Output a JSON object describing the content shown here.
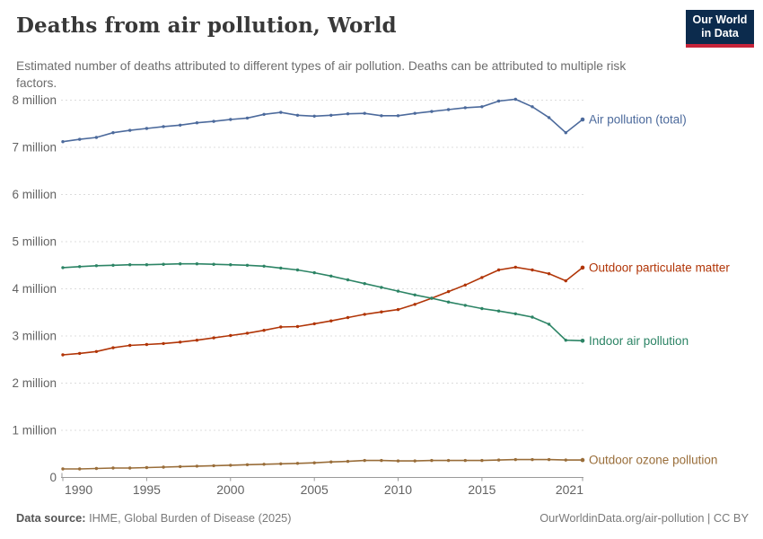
{
  "header": {
    "title": "Deaths from air pollution, World",
    "subtitle": "Estimated number of deaths attributed to different types of air pollution. Deaths can be attributed to multiple risk factors.",
    "logo": {
      "line1": "Our World",
      "line2": "in Data"
    }
  },
  "footer": {
    "datasource_label": "Data source:",
    "datasource_value": " IHME, Global Burden of Disease (2025)",
    "attribution": "OurWorldinData.org/air-pollution | CC BY"
  },
  "chart_data": {
    "type": "line",
    "title": "Deaths from air pollution, World",
    "xlabel": "",
    "ylabel": "",
    "ylim": [
      0,
      8.4
    ],
    "grid": true,
    "legend_position": "right-end-labels",
    "x": [
      1990,
      1991,
      1992,
      1993,
      1994,
      1995,
      1996,
      1997,
      1998,
      1999,
      2000,
      2001,
      2002,
      2003,
      2004,
      2005,
      2006,
      2007,
      2008,
      2009,
      2010,
      2011,
      2012,
      2013,
      2014,
      2015,
      2016,
      2017,
      2018,
      2019,
      2020,
      2021
    ],
    "series": [
      {
        "name": "Air pollution (total)",
        "color": "#4C6A9C",
        "values": [
          7.12,
          7.17,
          7.21,
          7.31,
          7.36,
          7.4,
          7.44,
          7.47,
          7.52,
          7.55,
          7.59,
          7.62,
          7.7,
          7.74,
          7.68,
          7.66,
          7.68,
          7.71,
          7.72,
          7.67,
          7.67,
          7.72,
          7.76,
          7.8,
          7.84,
          7.86,
          7.98,
          8.02,
          7.86,
          7.63,
          7.31,
          7.59
        ]
      },
      {
        "name": "Outdoor particulate matter",
        "color": "#B13507",
        "values": [
          2.6,
          2.63,
          2.67,
          2.75,
          2.8,
          2.82,
          2.84,
          2.87,
          2.91,
          2.96,
          3.01,
          3.06,
          3.12,
          3.19,
          3.2,
          3.26,
          3.32,
          3.39,
          3.46,
          3.51,
          3.56,
          3.67,
          3.8,
          3.94,
          4.08,
          4.24,
          4.4,
          4.46,
          4.4,
          4.32,
          4.17,
          4.45
        ]
      },
      {
        "name": "Indoor air pollution",
        "color": "#2C8465",
        "values": [
          4.45,
          4.47,
          4.49,
          4.5,
          4.51,
          4.51,
          4.52,
          4.53,
          4.53,
          4.52,
          4.51,
          4.5,
          4.48,
          4.44,
          4.4,
          4.34,
          4.27,
          4.19,
          4.11,
          4.03,
          3.95,
          3.87,
          3.8,
          3.72,
          3.65,
          3.58,
          3.53,
          3.47,
          3.4,
          3.25,
          2.91,
          2.9
        ]
      },
      {
        "name": "Outdoor ozone pollution",
        "color": "#996D39",
        "values": [
          0.18,
          0.18,
          0.19,
          0.2,
          0.2,
          0.21,
          0.22,
          0.23,
          0.24,
          0.25,
          0.26,
          0.27,
          0.28,
          0.29,
          0.3,
          0.31,
          0.33,
          0.34,
          0.36,
          0.36,
          0.35,
          0.35,
          0.36,
          0.36,
          0.36,
          0.36,
          0.37,
          0.38,
          0.38,
          0.38,
          0.37,
          0.37
        ]
      }
    ],
    "y_ticks": [
      {
        "value": 0,
        "label": "0"
      },
      {
        "value": 1,
        "label": "1 million"
      },
      {
        "value": 2,
        "label": "2 million"
      },
      {
        "value": 3,
        "label": "3 million"
      },
      {
        "value": 4,
        "label": "4 million"
      },
      {
        "value": 5,
        "label": "5 million"
      },
      {
        "value": 6,
        "label": "6 million"
      },
      {
        "value": 7,
        "label": "7 million"
      },
      {
        "value": 8,
        "label": "8 million"
      }
    ],
    "x_ticks": [
      {
        "value": 1990,
        "label": "1990"
      },
      {
        "value": 1995,
        "label": "1995"
      },
      {
        "value": 2000,
        "label": "2000"
      },
      {
        "value": 2005,
        "label": "2005"
      },
      {
        "value": 2010,
        "label": "2010"
      },
      {
        "value": 2015,
        "label": "2015"
      },
      {
        "value": 2021,
        "label": "2021"
      }
    ]
  }
}
